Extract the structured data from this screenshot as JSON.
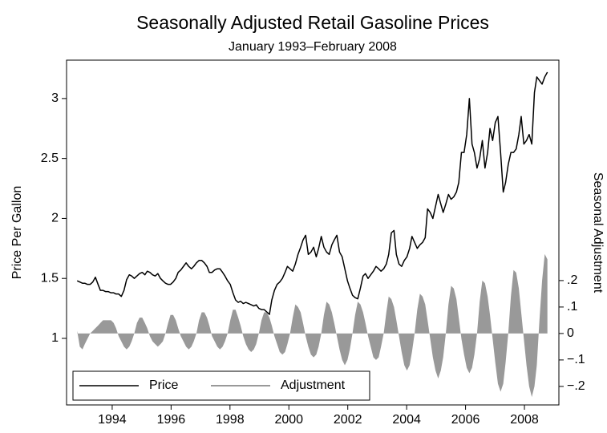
{
  "chart_data": {
    "type": "line",
    "title": "Seasonally Adjusted Retail Gasoline Prices",
    "subtitle": "January 1993–February 2008",
    "ylabel": "Price Per Gallon",
    "y2label": "Seasonal Adjustment",
    "legend": "lower left",
    "xlim": [
      1992.45,
      2009.17
    ],
    "xticks": [
      1994,
      1996,
      1998,
      2000,
      2002,
      2004,
      2006,
      2008
    ],
    "ylim": [
      0.445,
      3.32
    ],
    "yticks": [
      1,
      1.5,
      2,
      2.5,
      3
    ],
    "y2lim": [
      -0.27,
      1.033
    ],
    "y2ticks": [
      {
        "value": 0.2,
        "label": ".2"
      },
      {
        "value": 0.1,
        "label": ".1"
      },
      0,
      {
        "value": -0.1,
        "label": "−.1"
      },
      {
        "value": -0.2,
        "label": "−.2"
      }
    ],
    "x": [
      1992.81,
      1992.9,
      1992.99,
      1993.07,
      1993.16,
      1993.25,
      1993.34,
      1993.43,
      1993.52,
      1993.6,
      1993.69,
      1993.78,
      1993.87,
      1993.96,
      1994.05,
      1994.13,
      1994.22,
      1994.31,
      1994.4,
      1994.49,
      1994.58,
      1994.66,
      1994.75,
      1994.84,
      1994.93,
      1995.02,
      1995.11,
      1995.19,
      1995.28,
      1995.37,
      1995.46,
      1995.55,
      1995.64,
      1995.72,
      1995.81,
      1995.9,
      1995.98,
      1996.07,
      1996.16,
      1996.24,
      1996.33,
      1996.42,
      1996.51,
      1996.6,
      1996.69,
      1996.77,
      1996.86,
      1996.95,
      1997.04,
      1997.13,
      1997.22,
      1997.3,
      1997.39,
      1997.48,
      1997.57,
      1997.66,
      1997.75,
      1997.83,
      1997.92,
      1998.01,
      1998.1,
      1998.19,
      1998.28,
      1998.36,
      1998.45,
      1998.54,
      1998.63,
      1998.72,
      1998.81,
      1998.89,
      1998.98,
      1999.07,
      1999.16,
      1999.25,
      1999.34,
      1999.42,
      1999.51,
      1999.6,
      1999.69,
      1999.78,
      1999.87,
      1999.95,
      2000.04,
      2000.13,
      2000.22,
      2000.31,
      2000.4,
      2000.48,
      2000.57,
      2000.66,
      2000.75,
      2000.84,
      2000.93,
      2001.01,
      2001.1,
      2001.19,
      2001.28,
      2001.37,
      2001.46,
      2001.54,
      2001.63,
      2001.72,
      2001.81,
      2001.9,
      2001.99,
      2002.07,
      2002.16,
      2002.25,
      2002.34,
      2002.43,
      2002.52,
      2002.6,
      2002.69,
      2002.78,
      2002.87,
      2002.96,
      2003.05,
      2003.13,
      2003.22,
      2003.31,
      2003.39,
      2003.48,
      2003.57,
      2003.65,
      2003.74,
      2003.83,
      2003.92,
      2004.01,
      2004.1,
      2004.18,
      2004.27,
      2004.36,
      2004.45,
      2004.54,
      2004.63,
      2004.71,
      2004.8,
      2004.89,
      2004.98,
      2005.07,
      2005.16,
      2005.24,
      2005.33,
      2005.42,
      2005.51,
      2005.6,
      2005.69,
      2005.77,
      2005.86,
      2005.95,
      2006.04,
      2006.13,
      2006.22,
      2006.3,
      2006.39,
      2006.48,
      2006.57,
      2006.66,
      2006.75,
      2006.83,
      2006.92,
      2007.01,
      2007.1,
      2007.19,
      2007.28,
      2007.36,
      2007.45,
      2007.54,
      2007.63,
      2007.72,
      2007.81,
      2007.89,
      2007.98,
      2008.07,
      2008.16,
      2008.25,
      2008.34,
      2008.42,
      2008.51,
      2008.6,
      2008.69,
      2008.78
    ],
    "series": [
      {
        "name": "Price",
        "color": "#000000",
        "values": [
          1.48,
          1.47,
          1.46,
          1.46,
          1.45,
          1.45,
          1.47,
          1.51,
          1.45,
          1.4,
          1.4,
          1.39,
          1.39,
          1.38,
          1.38,
          1.37,
          1.37,
          1.35,
          1.4,
          1.49,
          1.53,
          1.52,
          1.5,
          1.52,
          1.54,
          1.55,
          1.53,
          1.56,
          1.55,
          1.53,
          1.52,
          1.54,
          1.5,
          1.48,
          1.46,
          1.45,
          1.45,
          1.47,
          1.5,
          1.55,
          1.57,
          1.6,
          1.63,
          1.6,
          1.58,
          1.6,
          1.63,
          1.65,
          1.65,
          1.63,
          1.6,
          1.55,
          1.55,
          1.57,
          1.58,
          1.58,
          1.55,
          1.52,
          1.48,
          1.45,
          1.38,
          1.32,
          1.3,
          1.31,
          1.29,
          1.3,
          1.29,
          1.28,
          1.27,
          1.28,
          1.25,
          1.24,
          1.24,
          1.22,
          1.2,
          1.32,
          1.4,
          1.45,
          1.47,
          1.5,
          1.55,
          1.6,
          1.58,
          1.56,
          1.62,
          1.7,
          1.76,
          1.82,
          1.86,
          1.7,
          1.72,
          1.76,
          1.68,
          1.75,
          1.85,
          1.76,
          1.72,
          1.7,
          1.78,
          1.82,
          1.86,
          1.72,
          1.68,
          1.58,
          1.48,
          1.42,
          1.36,
          1.34,
          1.33,
          1.42,
          1.52,
          1.54,
          1.5,
          1.53,
          1.56,
          1.6,
          1.58,
          1.56,
          1.58,
          1.62,
          1.7,
          1.88,
          1.9,
          1.7,
          1.62,
          1.6,
          1.65,
          1.68,
          1.75,
          1.85,
          1.8,
          1.75,
          1.78,
          1.8,
          1.84,
          2.08,
          2.05,
          2.0,
          2.1,
          2.2,
          2.12,
          2.05,
          2.12,
          2.2,
          2.16,
          2.18,
          2.22,
          2.3,
          2.55,
          2.55,
          2.7,
          3.0,
          2.62,
          2.55,
          2.42,
          2.5,
          2.65,
          2.42,
          2.55,
          2.75,
          2.65,
          2.8,
          2.85,
          2.55,
          2.22,
          2.3,
          2.45,
          2.55,
          2.55,
          2.58,
          2.7,
          2.85,
          2.62,
          2.65,
          2.7,
          2.62,
          3.05,
          3.18,
          3.15,
          3.12,
          3.18,
          3.22
        ]
      },
      {
        "name": "Adjustment",
        "color": "#999999",
        "axis": "y2",
        "area": true,
        "values": [
          0.01,
          -0.05,
          -0.06,
          -0.04,
          -0.02,
          0.0,
          0.01,
          0.02,
          0.03,
          0.04,
          0.05,
          0.05,
          0.05,
          0.05,
          0.04,
          0.02,
          -0.01,
          -0.03,
          -0.05,
          -0.06,
          -0.05,
          -0.03,
          0,
          0.04,
          0.06,
          0.06,
          0.04,
          0.02,
          -0.01,
          -0.03,
          -0.04,
          -0.05,
          -0.04,
          -0.03,
          0,
          0.04,
          0.07,
          0.07,
          0.05,
          0.02,
          -0.01,
          -0.03,
          -0.05,
          -0.06,
          -0.05,
          -0.03,
          0,
          0.05,
          0.08,
          0.08,
          0.06,
          0.03,
          -0.01,
          -0.03,
          -0.05,
          -0.06,
          -0.05,
          -0.03,
          0,
          0.05,
          0.09,
          0.09,
          0.06,
          0.03,
          -0.01,
          -0.04,
          -0.06,
          -0.07,
          -0.06,
          -0.04,
          0,
          0.05,
          0.08,
          0.08,
          0.06,
          0.03,
          -0.01,
          -0.04,
          -0.07,
          -0.08,
          -0.07,
          -0.04,
          0,
          0.06,
          0.11,
          0.1,
          0.08,
          0.04,
          -0.01,
          -0.05,
          -0.08,
          -0.09,
          -0.08,
          -0.05,
          0,
          0.07,
          0.12,
          0.11,
          0.08,
          0.04,
          -0.01,
          -0.06,
          -0.1,
          -0.12,
          -0.1,
          -0.06,
          0,
          0.07,
          0.12,
          0.11,
          0.08,
          0.04,
          -0.01,
          -0.05,
          -0.09,
          -0.1,
          -0.09,
          -0.05,
          0,
          0.08,
          0.14,
          0.13,
          0.1,
          0.05,
          -0.01,
          -0.07,
          -0.12,
          -0.14,
          -0.12,
          -0.07,
          0,
          0.09,
          0.15,
          0.14,
          0.11,
          0.05,
          -0.02,
          -0.09,
          -0.14,
          -0.17,
          -0.14,
          -0.09,
          0,
          0.11,
          0.18,
          0.17,
          0.13,
          0.06,
          -0.02,
          -0.08,
          -0.13,
          -0.15,
          -0.13,
          -0.08,
          0,
          0.12,
          0.2,
          0.19,
          0.14,
          0.07,
          -0.02,
          -0.11,
          -0.19,
          -0.22,
          -0.19,
          -0.11,
          0,
          0.14,
          0.24,
          0.23,
          0.17,
          0.08,
          -0.02,
          -0.12,
          -0.2,
          -0.24,
          -0.2,
          -0.12,
          0.05,
          0.2,
          0.3,
          0.28
        ]
      }
    ]
  }
}
